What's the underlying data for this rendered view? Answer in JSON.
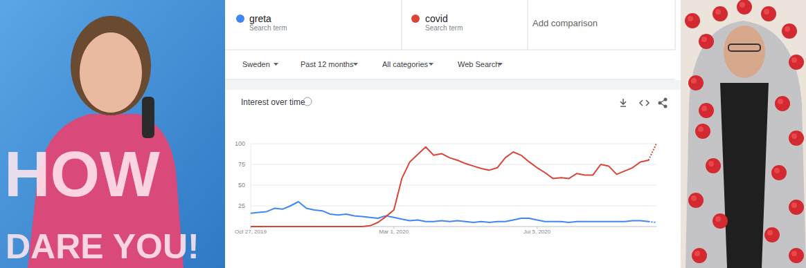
{
  "chart_data": {
    "type": "line",
    "title": "Interest over time",
    "x": [
      0,
      1,
      2,
      3,
      4,
      5,
      6,
      7,
      8,
      9,
      10,
      11,
      12,
      13,
      14,
      15,
      16,
      17,
      18,
      19,
      20,
      21,
      22,
      23,
      24,
      25,
      26,
      27,
      28,
      29,
      30,
      31,
      32,
      33,
      34,
      35,
      36,
      37,
      38,
      39,
      40,
      41,
      42,
      43,
      44,
      45,
      46,
      47,
      48,
      49,
      50,
      51
    ],
    "xlim": [
      0,
      51
    ],
    "xticks": [
      {
        "value": 0,
        "label": "Oct 27, 2019"
      },
      {
        "value": 18,
        "label": "Mar 1, 2020"
      },
      {
        "value": 36,
        "label": "Jul 5, 2020"
      }
    ],
    "ylim": [
      0,
      100
    ],
    "yticks": [
      25,
      50,
      75,
      100
    ],
    "grid": true,
    "series": [
      {
        "name": "greta",
        "color": "#4285f4",
        "values": [
          16,
          17,
          18,
          22,
          21,
          25,
          30,
          22,
          20,
          19,
          15,
          14,
          15,
          13,
          12,
          11,
          10,
          13,
          11,
          9,
          7,
          8,
          6,
          6,
          7,
          6,
          7,
          6,
          5,
          6,
          5,
          6,
          6,
          8,
          10,
          10,
          8,
          6,
          6,
          6,
          5,
          6,
          6,
          6,
          6,
          6,
          6,
          6,
          7,
          7,
          6,
          5
        ]
      },
      {
        "name": "covid",
        "color": "#db4437",
        "values": [
          0,
          0,
          0,
          0,
          0,
          0,
          0,
          0,
          0,
          0,
          0,
          0,
          0,
          0,
          0,
          1,
          5,
          12,
          20,
          58,
          78,
          87,
          96,
          86,
          88,
          83,
          80,
          76,
          73,
          70,
          68,
          71,
          83,
          90,
          86,
          78,
          71,
          65,
          58,
          59,
          58,
          64,
          62,
          62,
          75,
          73,
          63,
          67,
          71,
          78,
          80,
          100
        ]
      }
    ]
  },
  "search_term_captions": [
    "Search term",
    "Search term"
  ],
  "add_comparison": "Add comparison",
  "filters": [
    "Sweden",
    "Past 12 months",
    "All categories",
    "Web Search"
  ],
  "meme_text": [
    "HOW",
    "DARE YOU!"
  ]
}
